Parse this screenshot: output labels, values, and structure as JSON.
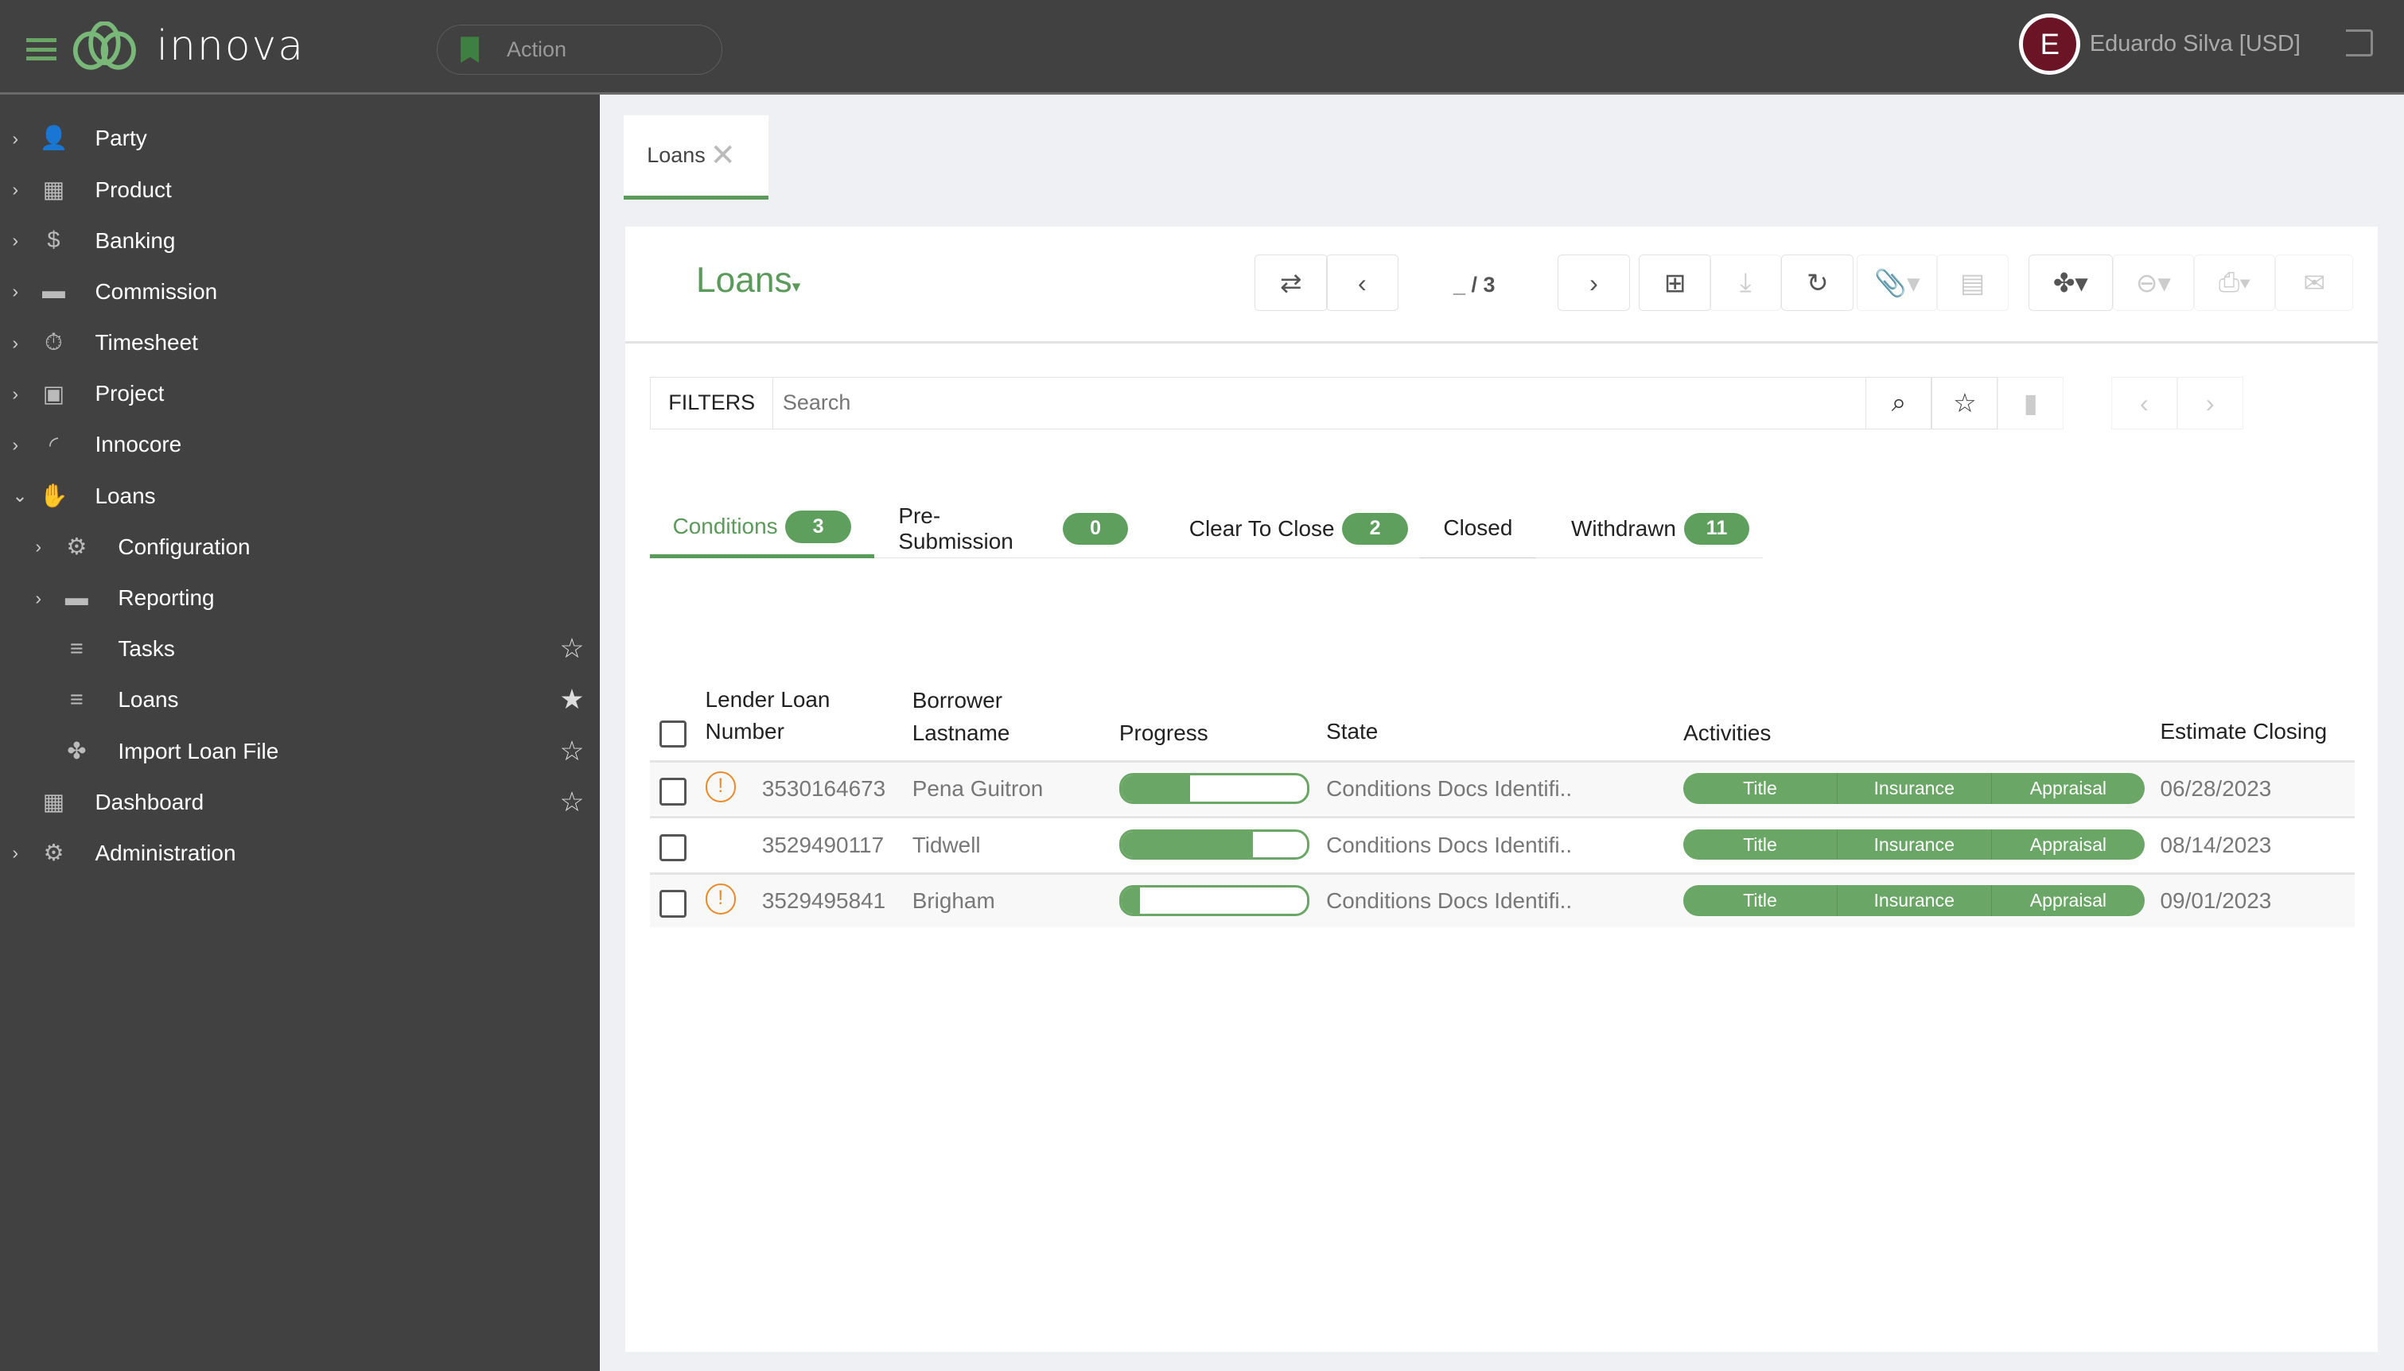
{
  "header": {
    "logo": "innova",
    "action_label": "Action",
    "user_initial": "E",
    "user_name": "Eduardo Silva [USD]"
  },
  "sidebar": {
    "items": [
      {
        "label": "Party",
        "icon": "person-icon",
        "expandable": true,
        "level": 0
      },
      {
        "label": "Product",
        "icon": "product-grid-icon",
        "expandable": true,
        "level": 0
      },
      {
        "label": "Banking",
        "icon": "dollar-icon",
        "expandable": true,
        "level": 0
      },
      {
        "label": "Commission",
        "icon": "folder-icon",
        "expandable": true,
        "level": 0
      },
      {
        "label": "Timesheet",
        "icon": "stopwatch-icon",
        "expandable": true,
        "level": 0
      },
      {
        "label": "Project",
        "icon": "briefcase-icon",
        "expandable": true,
        "level": 0
      },
      {
        "label": "Innocore",
        "icon": "innocore-icon",
        "expandable": true,
        "level": 0
      },
      {
        "label": "Loans",
        "icon": "loan-hand-icon",
        "expandable": true,
        "expanded": true,
        "level": 0
      },
      {
        "label": "Configuration",
        "icon": "gear-icon",
        "expandable": true,
        "level": 1
      },
      {
        "label": "Reporting",
        "icon": "folder-icon",
        "expandable": true,
        "level": 1
      },
      {
        "label": "Tasks",
        "icon": "list-icon",
        "level": 1,
        "star": "empty"
      },
      {
        "label": "Loans",
        "icon": "list-icon",
        "level": 1,
        "star": "filled"
      },
      {
        "label": "Import Loan File",
        "icon": "pinwheel-icon",
        "level": 1,
        "star": "empty"
      },
      {
        "label": "Dashboard",
        "icon": "dashboard-icon",
        "level": 0,
        "star": "empty"
      },
      {
        "label": "Administration",
        "icon": "gear-icon",
        "expandable": true,
        "level": 0
      }
    ]
  },
  "tab": {
    "label": "Loans"
  },
  "view": {
    "title": "Loans",
    "pager": "_ / 3"
  },
  "filters": {
    "label": "FILTERS",
    "search_placeholder": "Search"
  },
  "status_tabs": [
    {
      "label": "Conditions",
      "count": "3",
      "active": true
    },
    {
      "label": "Pre-Submission",
      "count": "0"
    },
    {
      "label": "Clear To Close",
      "count": "2"
    },
    {
      "label": "Closed"
    },
    {
      "label": "Withdrawn",
      "count": "11"
    }
  ],
  "table": {
    "headers": {
      "loan_number": "Lender Loan Number",
      "borrower": "Borrower Lastname",
      "progress": "Progress",
      "state": "State",
      "activities": "Activities",
      "closing": "Estimate Closing"
    },
    "rows": [
      {
        "warning": true,
        "loan_number": "3530164673",
        "borrower": "Pena Guitron",
        "progress": 0.37,
        "state": "Conditions Docs Identifi..",
        "activities": [
          "Title",
          "Insurance",
          "Appraisal"
        ],
        "closing": "06/28/2023"
      },
      {
        "warning": false,
        "loan_number": "3529490117",
        "borrower": "Tidwell",
        "progress": 0.71,
        "state": "Conditions Docs Identifi..",
        "activities": [
          "Title",
          "Insurance",
          "Appraisal"
        ],
        "closing": "08/14/2023"
      },
      {
        "warning": true,
        "loan_number": "3529495841",
        "borrower": "Brigham",
        "progress": 0.1,
        "state": "Conditions Docs Identifi..",
        "activities": [
          "Title",
          "Insurance",
          "Appraisal"
        ],
        "closing": "09/01/2023"
      }
    ]
  },
  "colors": {
    "accent": "#5f9f5e",
    "topbar": "#414141",
    "warning": "#ec8a2a",
    "avatar": "#6b1426"
  }
}
